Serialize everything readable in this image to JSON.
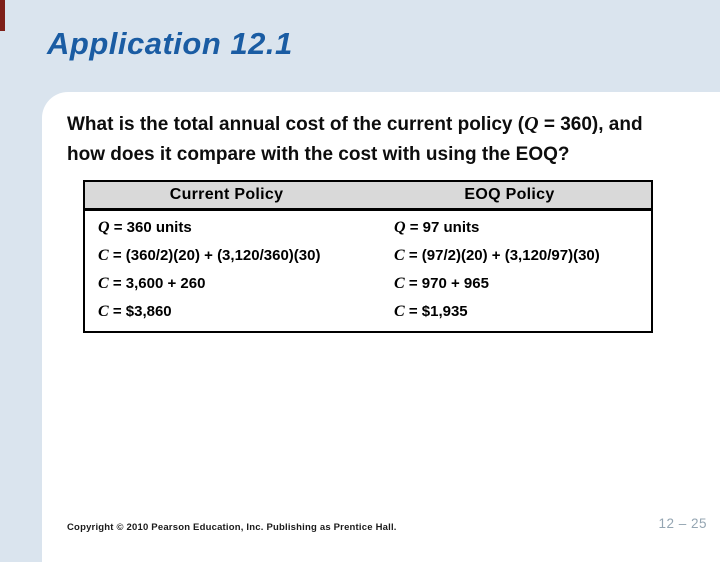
{
  "colors": {
    "bg": "#dae4ee",
    "title": "#1a5ca3",
    "header-bg": "#d9d9d9",
    "accent-bar": "#7e1f18",
    "page-num": "#94a5b2"
  },
  "slide": {
    "title": "Application 12.1"
  },
  "question": {
    "line1_pre": "What is the total annual cost of the current policy (",
    "line1_var": "Q",
    "line1_post": " = 360), and",
    "line2": "how does it compare with the cost with using the EOQ?"
  },
  "table": {
    "headers": [
      "Current Policy",
      "EOQ Policy"
    ],
    "columns": [
      {
        "name": "current-policy",
        "rows": [
          {
            "var": "Q",
            "text": " = 360 units"
          },
          {
            "var": "C",
            "text": " = (360/2)(20) + (3,120/360)(30)"
          },
          {
            "var": "C",
            "text": " = 3,600 + 260"
          },
          {
            "var": "C",
            "text": " = $3,860"
          }
        ]
      },
      {
        "name": "eoq-policy",
        "rows": [
          {
            "var": "Q",
            "text": " = 97 units"
          },
          {
            "var": "C",
            "text": " = (97/2)(20) + (3,120/97)(30)"
          },
          {
            "var": "C",
            "text": " = 970 + 965"
          },
          {
            "var": "C",
            "text": " = $1,935"
          }
        ]
      }
    ]
  },
  "footer": {
    "copyright": "Copyright © 2010 Pearson Education, Inc. Publishing as Prentice Hall.",
    "page": "12 – 25"
  }
}
